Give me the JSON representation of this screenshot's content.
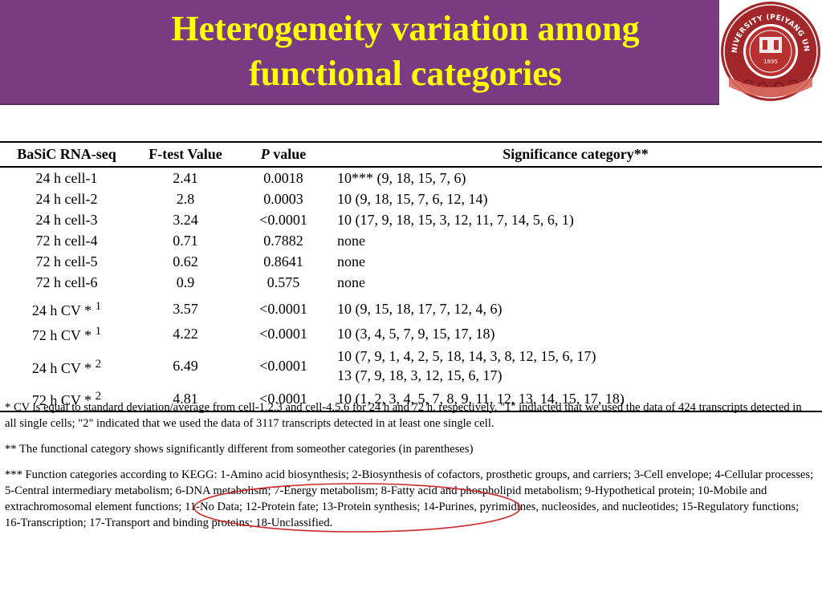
{
  "title": {
    "line1": "Heterogeneity variation among",
    "line2": "functional categories"
  },
  "logo": {
    "arc_text": "TIANJIN UNIVERSITY (PEIYANG UNIVERSITY)",
    "year": "1895",
    "colors": {
      "ring": "#a2272b",
      "inner": "#b8302f",
      "accent": "#d96a5d"
    }
  },
  "colors": {
    "banner": "#7a3b82",
    "title": "#ffff00",
    "highlight": "#cc2a2a"
  },
  "table": {
    "headers": {
      "col1": "BaSiC RNA-seq",
      "col2": "F-test Value",
      "col3_italic": "P",
      "col3_rest": " value",
      "col4": "Significance category**"
    },
    "rows": [
      {
        "name": "24 h cell-1",
        "sup": "",
        "f": "2.41",
        "p": "0.0018",
        "sig": "10*** (9, 18, 15, 7, 6)",
        "sig2": ""
      },
      {
        "name": "24 h cell-2",
        "sup": "",
        "f": "2.8",
        "p": "0.0003",
        "sig": "10 (9, 18, 15, 7, 6, 12, 14)",
        "sig2": ""
      },
      {
        "name": "24 h cell-3",
        "sup": "",
        "f": "3.24",
        "p": "<0.0001",
        "sig": "10 (17, 9, 18, 15, 3, 12, 11, 7, 14, 5, 6, 1)",
        "sig2": ""
      },
      {
        "name": "72 h cell-4",
        "sup": "",
        "f": "0.71",
        "p": "0.7882",
        "sig": "none",
        "sig2": ""
      },
      {
        "name": "72 h cell-5",
        "sup": "",
        "f": "0.62",
        "p": "0.8641",
        "sig": "none",
        "sig2": ""
      },
      {
        "name": "72 h cell-6",
        "sup": "",
        "f": "0.9",
        "p": "0.575",
        "sig": "none",
        "sig2": ""
      },
      {
        "name": "24 h CV * ",
        "sup": "1",
        "f": "3.57",
        "p": "<0.0001",
        "sig": "10 (9, 15, 18, 17, 7, 12, 4, 6)",
        "sig2": ""
      },
      {
        "name": "72 h CV * ",
        "sup": "1",
        "f": "4.22",
        "p": "<0.0001",
        "sig": "10 (3, 4, 5, 7, 9, 15, 17, 18)",
        "sig2": ""
      },
      {
        "name": "24 h CV * ",
        "sup": "2",
        "f": "6.49",
        "p": "<0.0001",
        "sig": "10 (7, 9, 1, 4, 2, 5, 18, 14, 3, 8, 12, 15, 6, 17)",
        "sig2": "13 (7, 9, 18, 3, 12, 15, 6, 17)"
      },
      {
        "name": "72 h CV * ",
        "sup": "2",
        "f": "4.81",
        "p": "<0.0001",
        "sig": "10 (1, 2, 3, 4, 5, 7, 8, 9, 11, 12, 13, 14, 15, 17, 18)",
        "sig2": ""
      }
    ]
  },
  "notes": {
    "n1": "* CV is equal to standard deviation/average from cell-1,2,3 and cell-4,5,6 for 24 h and 72 h, respectively, \"1\" indiacted that we used the data of 424 transcripts detected in all single cells; \"2\" indicated that we used the data of 3117 transcripts detected in at least one single cell.",
    "n2": "** The functional category shows significantly different from someother categories (in parentheses)",
    "n3": "*** Function categories according to KEGG: 1-Amino acid biosynthesis; 2-Biosynthesis of cofactors, prosthetic groups, and carriers; 3-Cell envelope; 4-Cellular processes; 5-Central intermediary metabolism; 6-DNA metabolism; 7-Energy metabolism; 8-Fatty acid and phospholipid metabolism; 9-Hypothetical protein; 10-Mobile and extrachromosomal element functions; 11-No Data; 12-Protein fate; 13-Protein synthesis; 14-Purines, pyrimidines, nucleosides, and nucleotides; 15-Regulatory functions; 16-Transcription; 17-Transport and binding proteins; 18-Unclassified."
  }
}
